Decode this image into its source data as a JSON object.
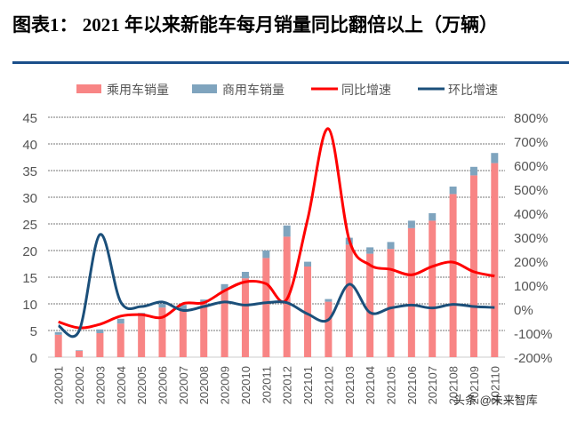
{
  "title": "图表1：  2021 年以来新能车每月销量同比翻倍以上（万辆）",
  "watermark": "头条 @未来智库",
  "chart_data": {
    "type": "bar+line",
    "title": "",
    "categories": [
      "202001",
      "202002",
      "202003",
      "202004",
      "202005",
      "202006",
      "202007",
      "202008",
      "202009",
      "202010",
      "202011",
      "202012",
      "202101",
      "202102",
      "202103",
      "202104",
      "202105",
      "202106",
      "202107",
      "202108",
      "202109",
      "202110"
    ],
    "legend_position": "top",
    "grid": true,
    "left_axis": {
      "range": [
        0,
        45
      ],
      "ticks": [
        "0",
        "5",
        "10",
        "15",
        "20",
        "25",
        "30",
        "35",
        "40",
        "45"
      ]
    },
    "right_axis": {
      "range": [
        -200,
        800
      ],
      "unit": "%",
      "ticks": [
        "-200%",
        "-100%",
        "0%",
        "100%",
        "200%",
        "300%",
        "400%",
        "500%",
        "600%",
        "700%",
        "800%"
      ]
    },
    "series": [
      {
        "name": "乘用车销量",
        "type": "stacked-bar",
        "axis": "left",
        "color": "#F88585",
        "values": [
          4.2,
          1.2,
          4.5,
          6.3,
          7.7,
          9.3,
          9.0,
          10.0,
          12.5,
          14.8,
          18.6,
          22.6,
          17.0,
          10.4,
          21.1,
          19.4,
          20.3,
          24.2,
          25.6,
          30.6,
          34.1,
          36.4
        ]
      },
      {
        "name": "商用车销量",
        "type": "stacked-bar",
        "axis": "left",
        "color": "#7FA4BE",
        "values": [
          0.5,
          0.1,
          0.7,
          0.9,
          0.6,
          0.7,
          0.8,
          0.8,
          1.2,
          1.2,
          1.4,
          2.1,
          0.9,
          0.5,
          1.3,
          1.2,
          1.3,
          1.4,
          1.4,
          1.4,
          1.6,
          1.9
        ]
      },
      {
        "name": "同比增速",
        "type": "line",
        "axis": "right",
        "color": "#FF0000",
        "values": [
          -53,
          -78,
          -63,
          -29,
          -23,
          -34,
          23,
          27,
          77,
          114,
          106,
          42,
          375,
          752,
          289,
          184,
          166,
          143,
          178,
          196,
          156,
          138
        ]
      },
      {
        "name": "环比增速",
        "type": "line",
        "axis": "right",
        "color": "#1B4F7A",
        "values": [
          -69,
          -90,
          311,
          30,
          11,
          30,
          -5,
          11,
          30,
          17,
          27,
          27,
          -20,
          -44,
          104,
          -14,
          5,
          17,
          5,
          20,
          11,
          7
        ]
      }
    ]
  }
}
